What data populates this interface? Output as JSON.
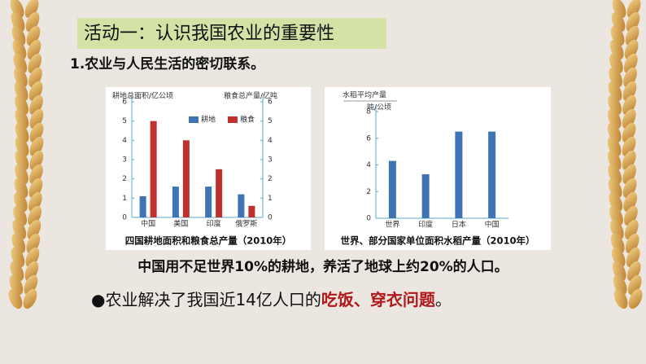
{
  "header": {
    "title": "活动一：认识我国农业的重要性",
    "subtitle": "1.农业与人民生活的密切联系。"
  },
  "chart_data": [
    {
      "type": "bar",
      "ylabel": "耕地总面积/亿公顷",
      "y2label": "粮食总产量/亿吨",
      "categories": [
        "中国",
        "美国",
        "印度",
        "俄罗斯"
      ],
      "series": [
        {
          "name": "耕地",
          "color": "#3e74b4",
          "values": [
            1.1,
            1.6,
            1.6,
            1.2
          ]
        },
        {
          "name": "粮食",
          "color": "#c0302e",
          "values": [
            5.0,
            4.0,
            2.5,
            0.6
          ],
          "axis": "y2"
        }
      ],
      "ylim": [
        0,
        6
      ],
      "yticks": [
        0,
        1,
        2,
        3,
        4,
        5,
        6
      ],
      "y2lim": [
        0,
        6
      ],
      "y2ticks": [
        0,
        1,
        2,
        3,
        4,
        5,
        6
      ],
      "legend": "top",
      "caption": "四国耕地面积和粮食总产量（2010年）"
    },
    {
      "type": "bar",
      "ylabel": [
        "水稻平均产量",
        "吨/公顷"
      ],
      "categories": [
        "世界",
        "印度",
        "日本",
        "中国"
      ],
      "series": [
        {
          "name": "水稻平均产量",
          "color": "#3e74b4",
          "values": [
            4.3,
            3.3,
            6.5,
            6.5
          ]
        }
      ],
      "ylim": [
        0,
        8
      ],
      "yticks": [
        0,
        2,
        4,
        6,
        8
      ],
      "caption": "世界、部分国家单位面积水稻产量（2010年）"
    }
  ],
  "statement": "中国用不足世界10%的耕地，养活了地球上约20%的人口。",
  "conclusion": {
    "parts": [
      "●农业解决了我国近14亿人口的",
      "吃饭、穿衣问题",
      "。"
    ]
  }
}
